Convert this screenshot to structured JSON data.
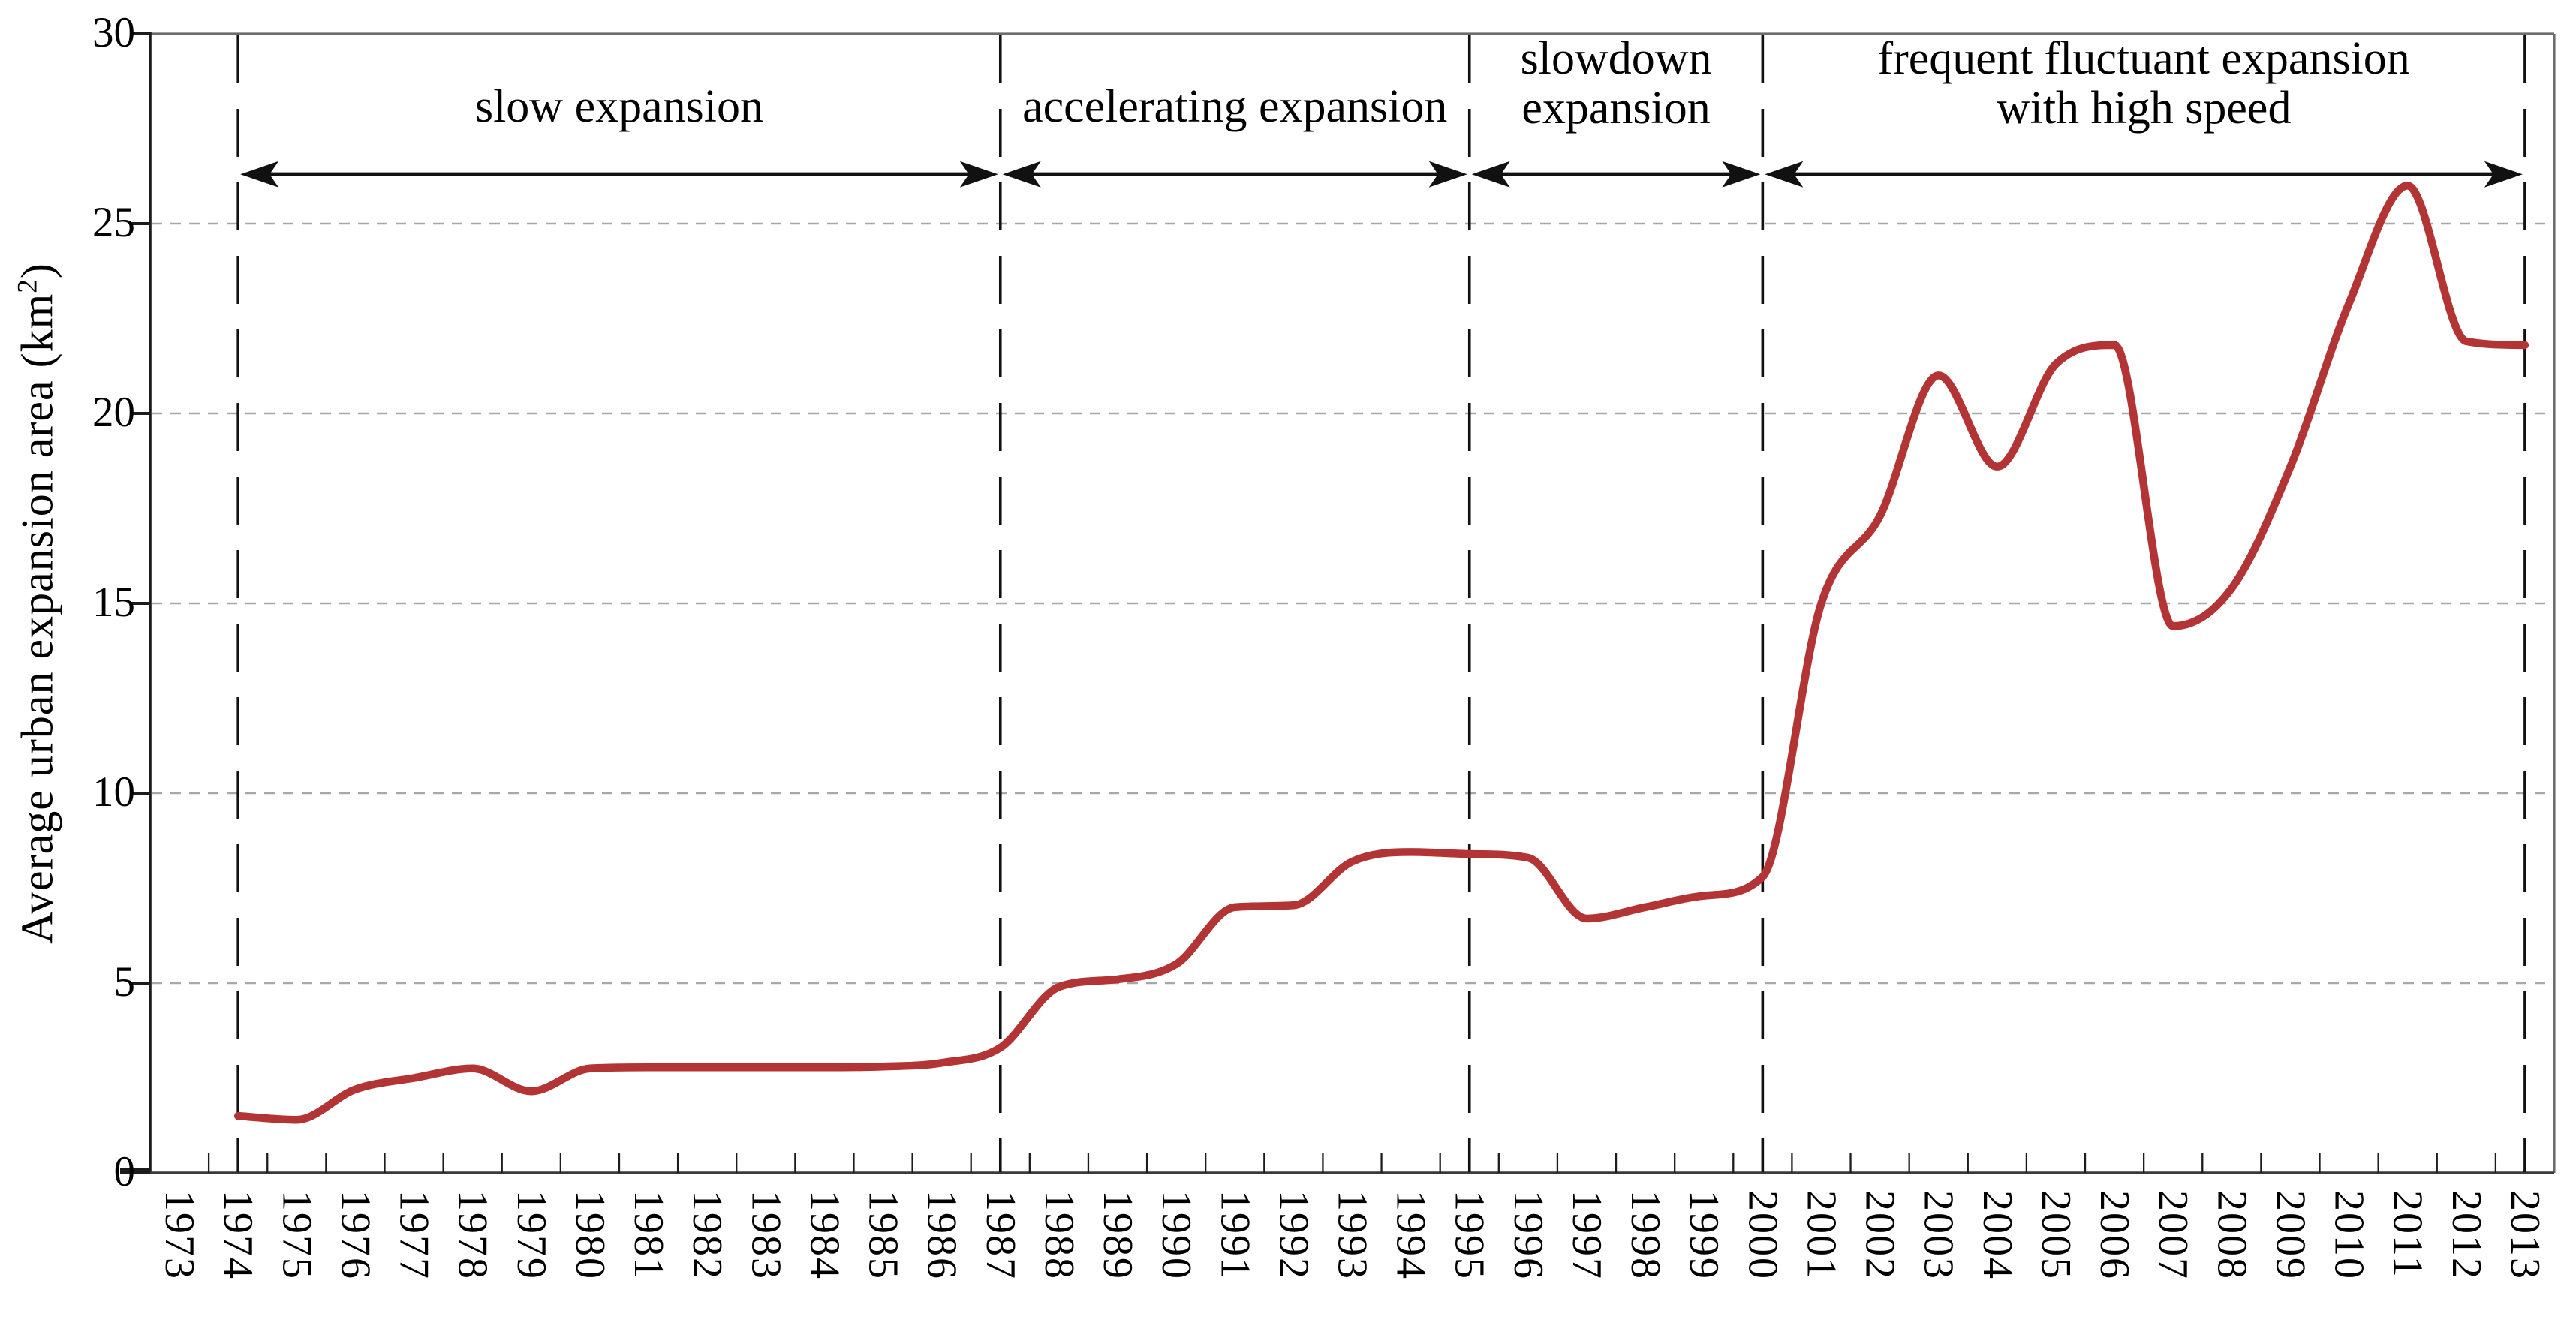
{
  "figure": {
    "ylabel_prefix": "Average urban expansion area (km",
    "ylabel_sup": "2",
    "ylabel_suffix": ")"
  },
  "colors": {
    "line": "#b23434",
    "grid": "#a8a8a8",
    "axis": "#1c1c1c",
    "baseline": "#3a3a3a",
    "frame": "#6c6c6c",
    "annotation": "#111111",
    "background": "#ffffff",
    "text": "#000000"
  },
  "chart_data": {
    "type": "line",
    "title": "",
    "xlabel": "",
    "ylabel": "Average urban expansion area (km²)",
    "ylim": [
      0,
      30
    ],
    "yticks": [
      0,
      5,
      10,
      15,
      20,
      25,
      30
    ],
    "grid": {
      "horizontal": true,
      "style": "dashed",
      "interval": 5
    },
    "legend": "none",
    "x_categories": [
      "1973",
      "1974",
      "1975",
      "1976",
      "1977",
      "1978",
      "1979",
      "1980",
      "1981",
      "1982",
      "1983",
      "1984",
      "1985",
      "1986",
      "1987",
      "1988",
      "1989",
      "1990",
      "1991",
      "1992",
      "1993",
      "1994",
      "1995",
      "1996",
      "1997",
      "1998",
      "1999",
      "2000",
      "2001",
      "2002",
      "2003",
      "2004",
      "2005",
      "2006",
      "2007",
      "2008",
      "2009",
      "2010",
      "2011",
      "2012",
      "2013"
    ],
    "series": [
      {
        "name": "average urban expansion area",
        "color": "#b23434",
        "years": [
          1974,
          1975,
          1976,
          1977,
          1978,
          1979,
          1980,
          1981,
          1982,
          1983,
          1984,
          1985,
          1986,
          1987,
          1988,
          1989,
          1990,
          1991,
          1992,
          1993,
          1994,
          1995,
          1996,
          1997,
          1998,
          1999,
          2000,
          2001,
          2002,
          2003,
          2004,
          2005,
          2006,
          2007,
          2008,
          2009,
          2010,
          2011,
          2012,
          2013
        ],
        "values": [
          1.5,
          1.4,
          2.2,
          2.5,
          2.75,
          2.15,
          2.75,
          2.78,
          2.78,
          2.78,
          2.78,
          2.8,
          2.9,
          3.3,
          4.9,
          5.1,
          5.5,
          7.0,
          7.05,
          8.2,
          8.45,
          8.4,
          8.3,
          6.7,
          7.0,
          7.3,
          7.8,
          15.0,
          17.3,
          21.0,
          18.6,
          21.3,
          21.8,
          14.4,
          15.4,
          18.6,
          22.9,
          26.0,
          21.9,
          21.8
        ]
      }
    ],
    "phase_divider_years": [
      1974,
      1987,
      1995,
      2000,
      2013
    ],
    "arrow_level": 26.3,
    "phases": [
      {
        "start_year": 1974,
        "end_year": 1987,
        "label": "slow expansion",
        "label_lines": [
          "slow expansion"
        ]
      },
      {
        "start_year": 1987,
        "end_year": 1995,
        "label": "accelerating expansion",
        "label_lines": [
          "accelerating expansion"
        ]
      },
      {
        "start_year": 1995,
        "end_year": 2000,
        "label": "slowdown expansion",
        "label_lines": [
          "slowdown",
          "expansion"
        ]
      },
      {
        "start_year": 2000,
        "end_year": 2013,
        "label": "frequent fluctuant expansion with high speed",
        "label_lines": [
          "frequent fluctuant expansion",
          "with high speed"
        ]
      }
    ]
  }
}
